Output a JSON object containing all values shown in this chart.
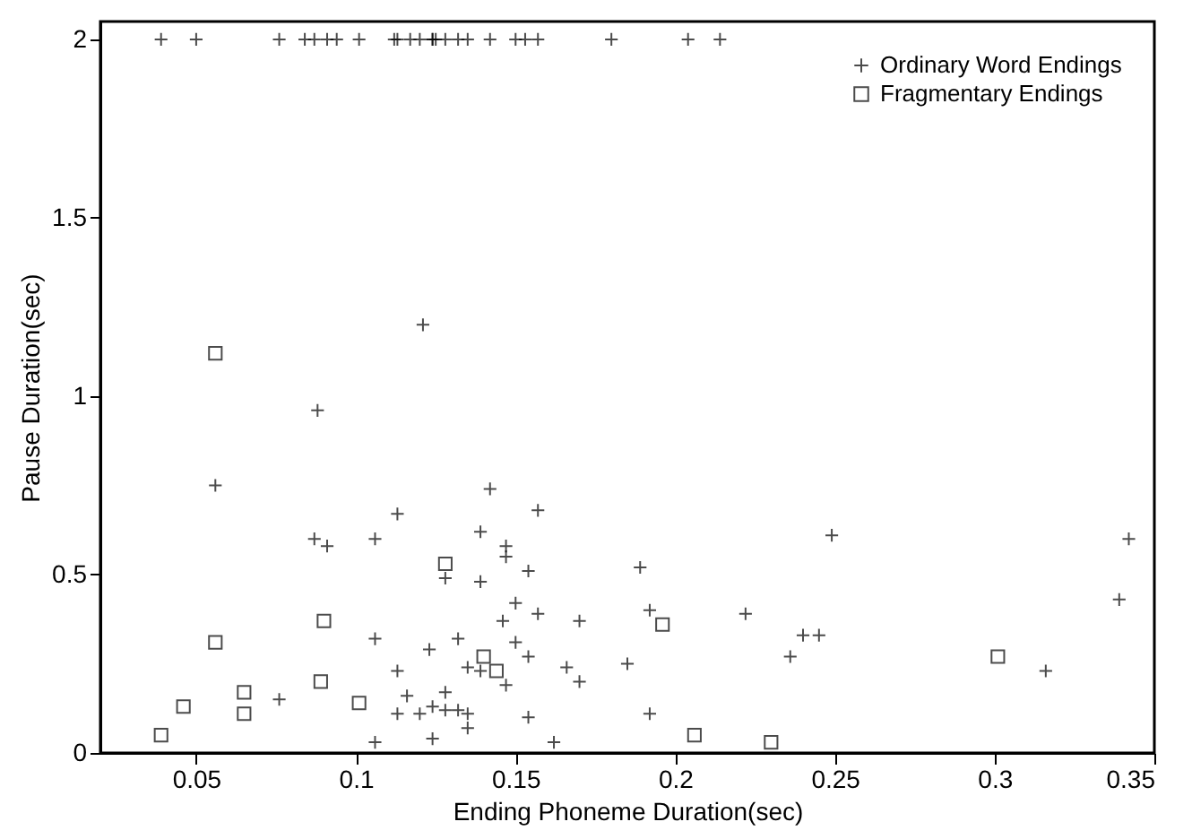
{
  "chart_data": {
    "type": "scatter",
    "xlabel": "Ending Phoneme Duration(sec)",
    "ylabel": "Pause Duration(sec)",
    "xlim": [
      0.02,
      0.35
    ],
    "ylim": [
      0,
      2.05
    ],
    "xticks": [
      0.05,
      0.1,
      0.15,
      0.2,
      0.25,
      0.3,
      0.35
    ],
    "yticks": [
      0,
      0.5,
      1,
      1.5,
      2
    ],
    "grid": false,
    "legend": "top right",
    "series": [
      {
        "name": "Ordinary Word Endings",
        "color": "#000000",
        "marker": "cross",
        "x": [
          0.039,
          0.05,
          0.076,
          0.084,
          0.087,
          0.091,
          0.094,
          0.101,
          0.112,
          0.113,
          0.117,
          0.12,
          0.124,
          0.124,
          0.125,
          0.128,
          0.132,
          0.135,
          0.142,
          0.15,
          0.153,
          0.157,
          0.18,
          0.204,
          0.214,
          0.121,
          0.088,
          0.056,
          0.142,
          0.157,
          0.113,
          0.139,
          0.087,
          0.091,
          0.106,
          0.147,
          0.147,
          0.128,
          0.154,
          0.189,
          0.139,
          0.15,
          0.157,
          0.146,
          0.17,
          0.192,
          0.106,
          0.132,
          0.15,
          0.123,
          0.154,
          0.135,
          0.139,
          0.113,
          0.166,
          0.185,
          0.147,
          0.17,
          0.076,
          0.116,
          0.128,
          0.124,
          0.12,
          0.113,
          0.128,
          0.132,
          0.135,
          0.135,
          0.154,
          0.192,
          0.124,
          0.106,
          0.162,
          0.222,
          0.249,
          0.24,
          0.245,
          0.236,
          0.316,
          0.342,
          0.339
        ],
        "values": [
          2,
          2,
          2,
          2,
          2,
          2,
          2,
          2,
          2,
          2,
          2,
          2,
          2,
          2,
          2,
          2,
          2,
          2,
          2,
          2,
          2,
          2,
          2,
          2,
          2,
          1.2,
          0.96,
          0.75,
          0.74,
          0.68,
          0.67,
          0.62,
          0.6,
          0.58,
          0.6,
          0.58,
          0.55,
          0.49,
          0.51,
          0.52,
          0.48,
          0.42,
          0.39,
          0.37,
          0.37,
          0.4,
          0.32,
          0.32,
          0.31,
          0.29,
          0.27,
          0.24,
          0.23,
          0.23,
          0.24,
          0.25,
          0.19,
          0.2,
          0.15,
          0.16,
          0.17,
          0.13,
          0.11,
          0.11,
          0.12,
          0.12,
          0.11,
          0.07,
          0.1,
          0.11,
          0.04,
          0.03,
          0.03,
          0.39,
          0.61,
          0.33,
          0.33,
          0.27,
          0.23,
          0.6,
          0.43
        ]
      },
      {
        "name": "Fragmentary Endings",
        "color": "#000000",
        "marker": "square",
        "x": [
          0.056,
          0.128,
          0.09,
          0.196,
          0.056,
          0.14,
          0.144,
          0.089,
          0.065,
          0.046,
          0.065,
          0.101,
          0.039,
          0.206,
          0.23,
          0.301
        ],
        "values": [
          1.12,
          0.53,
          0.37,
          0.36,
          0.31,
          0.27,
          0.23,
          0.2,
          0.17,
          0.13,
          0.11,
          0.14,
          0.05,
          0.05,
          0.03,
          0.27
        ]
      }
    ]
  }
}
